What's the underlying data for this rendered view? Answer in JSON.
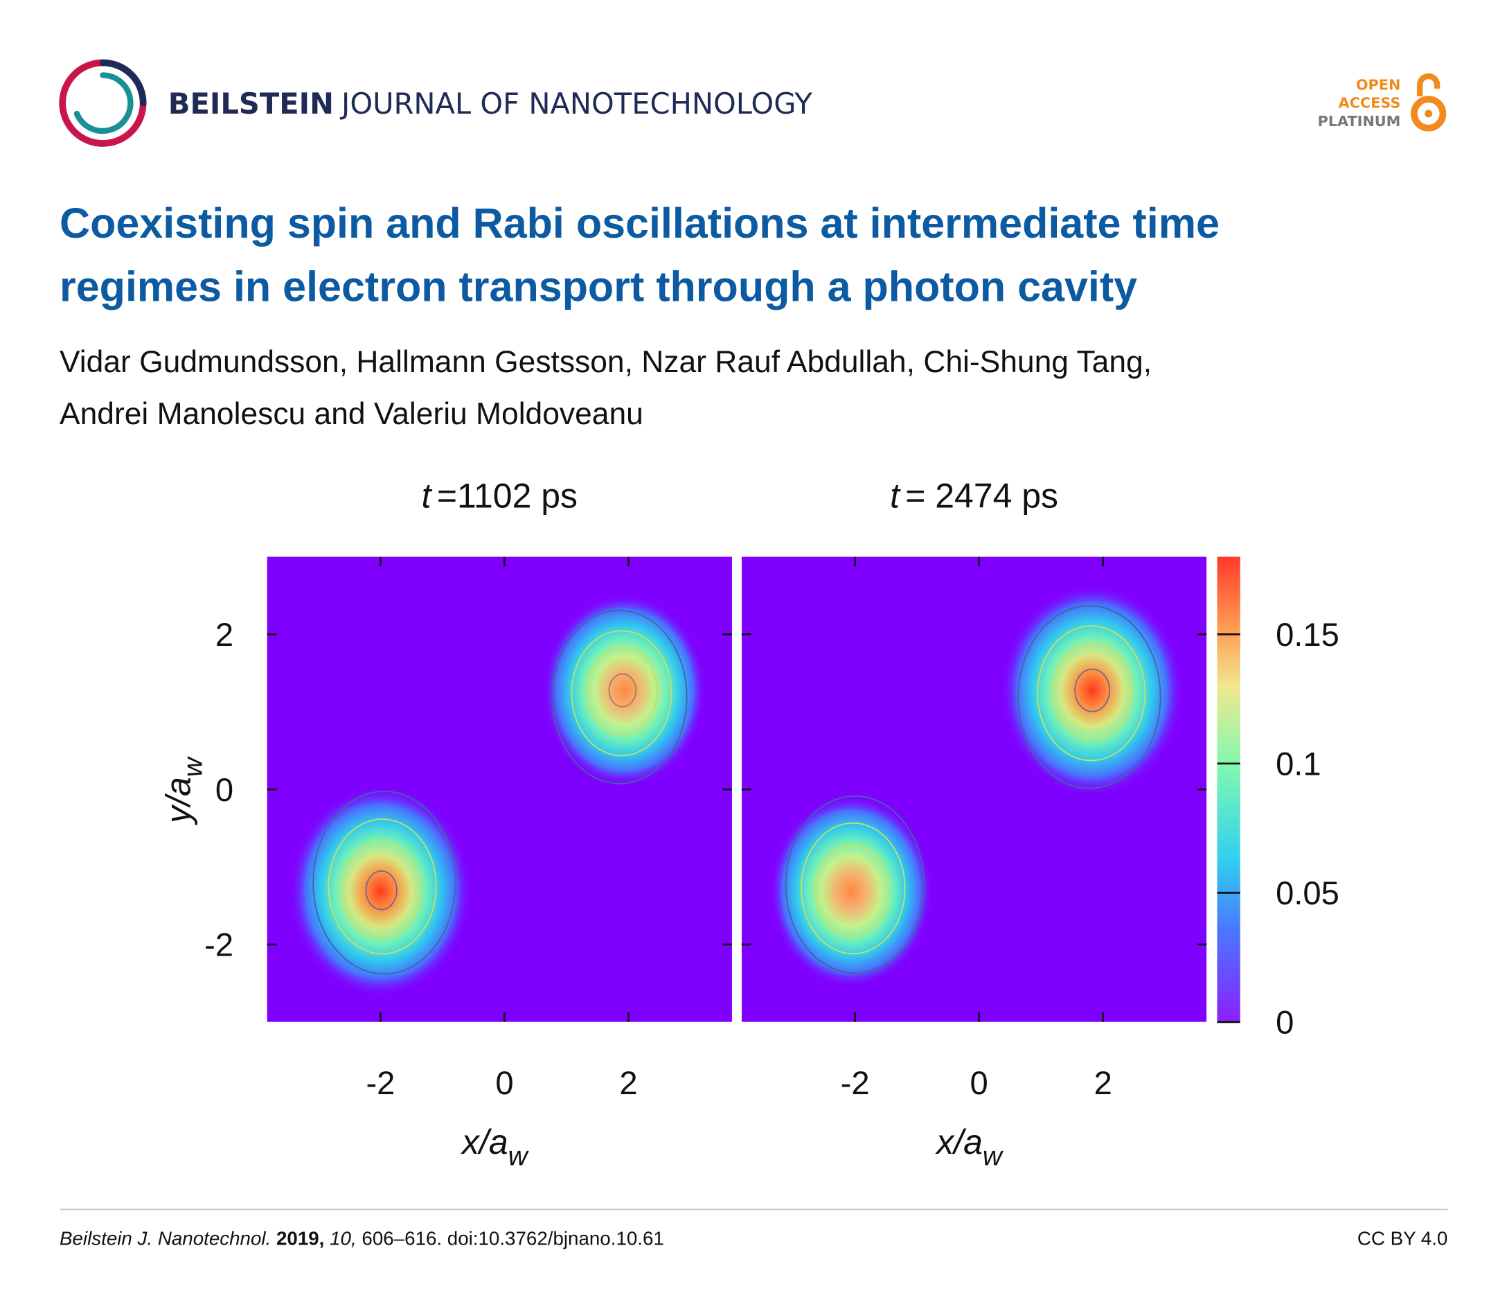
{
  "header": {
    "journal_bold": "BEILSTEIN",
    "journal_rest": "JOURNAL OF NANOTECHNOLOGY",
    "badge": [
      "OPEN",
      "ACCESS",
      "PLATINUM"
    ]
  },
  "title": [
    "Coexisting spin and Rabi oscillations at intermediate time",
    "regimes in electron transport through a photon cavity"
  ],
  "authors": [
    "Vidar Gudmundsson, Hallmann Gestsson, Nzar Rauf Abdullah, Chi-Shung Tang,",
    "Andrei Manolescu and Valeriu Moldoveanu"
  ],
  "figure": {
    "panels": [
      {
        "var": "t",
        "label": "=1102 ps"
      },
      {
        "var": "t",
        "label": "= 2474 ps"
      }
    ],
    "xlim": [
      -3.83,
      3.67
    ],
    "ylim": [
      -3,
      3
    ],
    "xticks": [
      -2,
      0,
      2
    ],
    "yticks": [
      2,
      0,
      -2
    ],
    "x_label": {
      "text": "x/a",
      "sub": "w"
    },
    "y_label": {
      "text": "y/a",
      "sub": "w"
    },
    "colorbar": {
      "lim": [
        0,
        0.18
      ],
      "ticks": [
        0,
        0.05,
        0.1,
        0.15
      ]
    }
  },
  "footer": {
    "journal": "Beilstein J. Nanotechnol.",
    "year": "2019,",
    "volume": "10,",
    "rest": "606–616. doi:10.3762/bjnano.10.61",
    "license": "CC BY 4.0"
  }
}
